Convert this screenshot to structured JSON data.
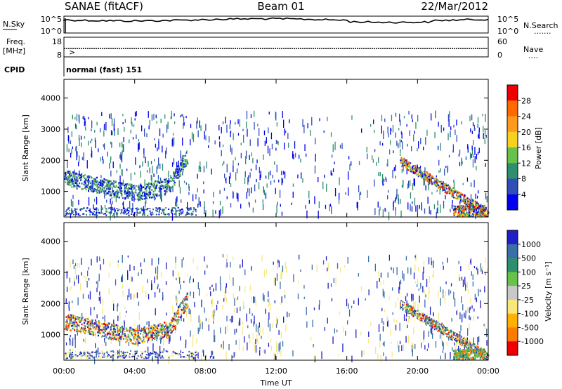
{
  "header": {
    "title": "SANAE (fitACF)",
    "beam": "Beam 01",
    "date": "22/Mar/2012"
  },
  "noise_panel": {
    "left_label": "N.Sky",
    "right_label": "N.Search",
    "left_ticks": [
      "10^5",
      "10^0"
    ],
    "right_ticks": [
      "10^5",
      "10^0"
    ],
    "dotted_marker": "......."
  },
  "freq_panel": {
    "left_label": "Freq.",
    "left_unit": "[MHz]",
    "right_label": "Nave",
    "dotted_marker": "....",
    "left_ticks": [
      18,
      8
    ],
    "right_ticks": [
      60,
      0
    ],
    "marker": ">"
  },
  "cpid": {
    "label": "CPID",
    "value": "normal (fast) 151"
  },
  "time_axis": {
    "label": "Time UT",
    "ticks": [
      "00:00",
      "04:00",
      "08:00",
      "12:00",
      "16:00",
      "20:00",
      "00:00"
    ]
  },
  "chart_data": [
    {
      "type": "heatmap",
      "title": "",
      "ylabel": "Slant Range [km]",
      "xlabel": "",
      "ylim": [
        180,
        4600
      ],
      "yticks": [
        1000,
        2000,
        3000,
        4000
      ],
      "colorbar": {
        "label": "Power [dB]",
        "ticks": [
          "4",
          "8",
          "12",
          "16",
          "20",
          "24",
          "28"
        ],
        "colors": [
          "#0000ee",
          "#2e4fb8",
          "#2e8f6e",
          "#66c24a",
          "#f4d21e",
          "#ff9a1e",
          "#ff6a00",
          "#ee0000"
        ]
      }
    },
    {
      "type": "heatmap",
      "title": "",
      "ylabel": "Slant Range [km]",
      "xlabel": "Time UT",
      "ylim": [
        180,
        4600
      ],
      "yticks": [
        1000,
        2000,
        3000,
        4000
      ],
      "colorbar": {
        "label": "Velocity [m s⁻¹]",
        "ticks": [
          "1000",
          "500",
          "100",
          "25",
          "-25",
          "-100",
          "-500",
          "-1000"
        ],
        "colors": [
          "#2020c8",
          "#3a6fa8",
          "#2e8f6e",
          "#66c24a",
          "#c8c8c8",
          "#f8e87c",
          "#ffb000",
          "#ff7a00",
          "#ee0000"
        ]
      }
    }
  ]
}
